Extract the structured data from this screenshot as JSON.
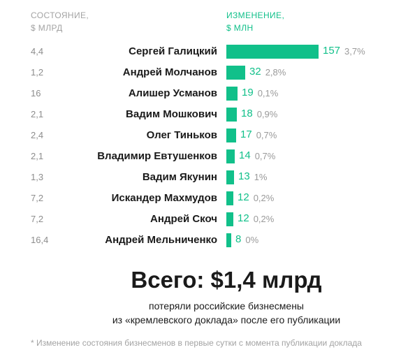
{
  "header": {
    "left_line1": "СОСТОЯНИЕ,",
    "left_line2": "$ МЛРД",
    "right_line1": "ИЗМЕНЕНИЕ,",
    "right_line2": "$ МЛН"
  },
  "chart_data": {
    "type": "bar",
    "orientation": "horizontal",
    "categories": [
      "Сергей Галицкий",
      "Андрей Молчанов",
      "Алишер Усманов",
      "Вадим Мошкович",
      "Олег Тиньков",
      "Владимир Евтушенков",
      "Вадим Якунин",
      "Искандер Махмудов",
      "Андрей Скоч",
      "Андрей Мельниченко"
    ],
    "series": [
      {
        "name": "ИЗМЕНЕНИЕ, $ МЛН",
        "values": [
          157,
          32,
          19,
          18,
          17,
          14,
          13,
          12,
          12,
          8
        ],
        "labels": [
          "157",
          "32",
          "19",
          "18",
          "17",
          "14",
          "13",
          "12",
          "12",
          "8"
        ]
      }
    ],
    "percent_labels": [
      "3,7%",
      "2,8%",
      "0,1%",
      "0,9%",
      "0,7%",
      "0,7%",
      "1%",
      "0,2%",
      "0,2%",
      "0%"
    ],
    "wealth_labels": [
      "4,4",
      "1,2",
      "16",
      "2,1",
      "2,4",
      "2,1",
      "1,3",
      "7,2",
      "7,2",
      "16,4"
    ],
    "xlim": [
      0,
      157
    ],
    "bar_color": "#11c08a",
    "grid": false,
    "legend": "none"
  },
  "summary": {
    "total": "Всего: $1,4 млрд",
    "line1": "потеряли российские бизнесмены",
    "line2": "из «кремлевского доклада» после его публикации"
  },
  "footnote": "* Изменение состояния бизнесменов в первые сутки с момента публикации доклада"
}
